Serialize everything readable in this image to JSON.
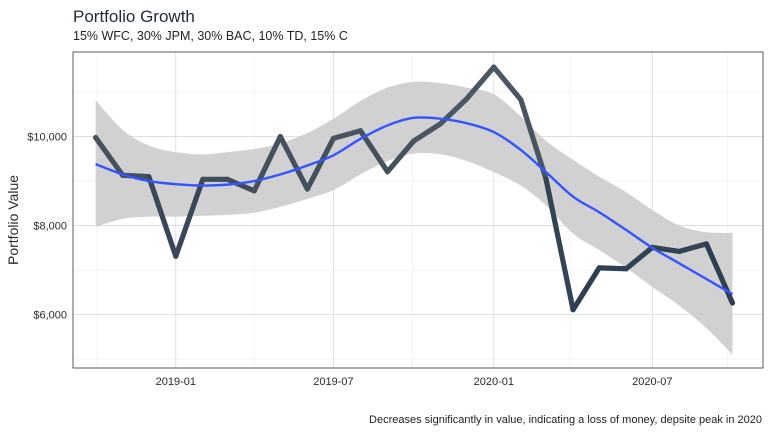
{
  "chart_data": {
    "type": "line",
    "title": "Portfolio Growth",
    "subtitle": "15% WFC, 30% JPM, 30% BAC, 10% TD, 15% C",
    "caption": "Decreases significantly in value, indicating a loss of money, depsite peak in 2020",
    "xlabel": "",
    "ylabel": "Portfolio Value",
    "x_ticks": [
      {
        "date": "2019-01-01",
        "label": "2019-01"
      },
      {
        "date": "2019-07-01",
        "label": "2019-07"
      },
      {
        "date": "2020-01-01",
        "label": "2020-01"
      },
      {
        "date": "2020-07-01",
        "label": "2020-07"
      }
    ],
    "y_ticks": [
      {
        "value": 6000,
        "label": "$6,000"
      },
      {
        "value": 8000,
        "label": "$8,000"
      },
      {
        "value": 10000,
        "label": "$10,000"
      }
    ],
    "xlim": [
      "2018-09-05",
      "2020-11-05"
    ],
    "ylim": [
      4800,
      11900
    ],
    "grid": true,
    "legend": "none",
    "colors": {
      "panel_border": "#333333",
      "grid_major": "#d9d9d9",
      "grid_minor": "#ececec",
      "band": "#cfcfcf",
      "smooth": "#3355ff",
      "line_low": "#2c3e50",
      "line_high": "#4b5563",
      "text": "#2b2b2b"
    },
    "series": [
      {
        "values": [
          {
            "x": "2018-10-01",
            "y": 9980
          },
          {
            "x": "2018-11-01",
            "y": 9130
          },
          {
            "x": "2018-12-01",
            "y": 9100
          },
          {
            "x": "2019-01-01",
            "y": 7310
          },
          {
            "x": "2019-02-01",
            "y": 9040
          },
          {
            "x": "2019-03-01",
            "y": 9040
          },
          {
            "x": "2019-04-01",
            "y": 8780
          },
          {
            "x": "2019-05-01",
            "y": 10000
          },
          {
            "x": "2019-06-01",
            "y": 8820
          },
          {
            "x": "2019-07-01",
            "y": 9960
          },
          {
            "x": "2019-08-01",
            "y": 10130
          },
          {
            "x": "2019-09-01",
            "y": 9210
          },
          {
            "x": "2019-10-01",
            "y": 9900
          },
          {
            "x": "2019-11-01",
            "y": 10290
          },
          {
            "x": "2019-12-01",
            "y": 10850
          },
          {
            "x": "2020-01-01",
            "y": 11560
          },
          {
            "x": "2020-02-01",
            "y": 10830
          },
          {
            "x": "2020-03-01",
            "y": 9040
          },
          {
            "x": "2020-04-01",
            "y": 6110
          },
          {
            "x": "2020-05-01",
            "y": 7050
          },
          {
            "x": "2020-06-01",
            "y": 7030
          },
          {
            "x": "2020-07-01",
            "y": 7510
          },
          {
            "x": "2020-08-01",
            "y": 7420
          },
          {
            "x": "2020-09-01",
            "y": 7590
          },
          {
            "x": "2020-10-01",
            "y": 6260
          }
        ]
      }
    ],
    "smooth": {
      "method": "loess",
      "fit": [
        {
          "x": "2018-10-01",
          "y": 9380
        },
        {
          "x": "2018-11-01",
          "y": 9150
        },
        {
          "x": "2018-12-01",
          "y": 9000
        },
        {
          "x": "2019-01-01",
          "y": 8930
        },
        {
          "x": "2019-02-01",
          "y": 8900
        },
        {
          "x": "2019-03-01",
          "y": 8920
        },
        {
          "x": "2019-04-01",
          "y": 9000
        },
        {
          "x": "2019-05-01",
          "y": 9150
        },
        {
          "x": "2019-06-01",
          "y": 9350
        },
        {
          "x": "2019-07-01",
          "y": 9580
        },
        {
          "x": "2019-08-01",
          "y": 9950
        },
        {
          "x": "2019-09-01",
          "y": 10250
        },
        {
          "x": "2019-10-01",
          "y": 10420
        },
        {
          "x": "2019-11-01",
          "y": 10400
        },
        {
          "x": "2019-12-01",
          "y": 10300
        },
        {
          "x": "2020-01-01",
          "y": 10100
        },
        {
          "x": "2020-02-01",
          "y": 9700
        },
        {
          "x": "2020-03-01",
          "y": 9200
        },
        {
          "x": "2020-04-01",
          "y": 8650
        },
        {
          "x": "2020-05-01",
          "y": 8300
        },
        {
          "x": "2020-06-01",
          "y": 7900
        },
        {
          "x": "2020-07-01",
          "y": 7500
        },
        {
          "x": "2020-08-01",
          "y": 7150
        },
        {
          "x": "2020-09-01",
          "y": 6800
        },
        {
          "x": "2020-10-01",
          "y": 6460
        }
      ],
      "band_upper": [
        {
          "x": "2018-10-01",
          "y": 10820
        },
        {
          "x": "2018-11-01",
          "y": 10150
        },
        {
          "x": "2018-12-01",
          "y": 9800
        },
        {
          "x": "2019-01-01",
          "y": 9650
        },
        {
          "x": "2019-02-01",
          "y": 9600
        },
        {
          "x": "2019-03-01",
          "y": 9650
        },
        {
          "x": "2019-04-01",
          "y": 9720
        },
        {
          "x": "2019-05-01",
          "y": 9850
        },
        {
          "x": "2019-06-01",
          "y": 10080
        },
        {
          "x": "2019-07-01",
          "y": 10400
        },
        {
          "x": "2019-08-01",
          "y": 10800
        },
        {
          "x": "2019-09-01",
          "y": 11100
        },
        {
          "x": "2019-10-01",
          "y": 11230
        },
        {
          "x": "2019-11-01",
          "y": 11200
        },
        {
          "x": "2019-12-01",
          "y": 11100
        },
        {
          "x": "2020-01-01",
          "y": 10950
        },
        {
          "x": "2020-02-01",
          "y": 10450
        },
        {
          "x": "2020-03-01",
          "y": 9900
        },
        {
          "x": "2020-04-01",
          "y": 9480
        },
        {
          "x": "2020-05-01",
          "y": 9100
        },
        {
          "x": "2020-06-01",
          "y": 8750
        },
        {
          "x": "2020-07-01",
          "y": 8350
        },
        {
          "x": "2020-08-01",
          "y": 8000
        },
        {
          "x": "2020-09-01",
          "y": 7850
        },
        {
          "x": "2020-10-01",
          "y": 7840
        }
      ],
      "band_lower": [
        {
          "x": "2018-10-01",
          "y": 7970
        },
        {
          "x": "2018-11-01",
          "y": 8150
        },
        {
          "x": "2018-12-01",
          "y": 8200
        },
        {
          "x": "2019-01-01",
          "y": 8200
        },
        {
          "x": "2019-02-01",
          "y": 8220
        },
        {
          "x": "2019-03-01",
          "y": 8240
        },
        {
          "x": "2019-04-01",
          "y": 8290
        },
        {
          "x": "2019-05-01",
          "y": 8420
        },
        {
          "x": "2019-06-01",
          "y": 8600
        },
        {
          "x": "2019-07-01",
          "y": 8800
        },
        {
          "x": "2019-08-01",
          "y": 9150
        },
        {
          "x": "2019-09-01",
          "y": 9450
        },
        {
          "x": "2019-10-01",
          "y": 9620
        },
        {
          "x": "2019-11-01",
          "y": 9600
        },
        {
          "x": "2019-12-01",
          "y": 9450
        },
        {
          "x": "2020-01-01",
          "y": 9200
        },
        {
          "x": "2020-02-01",
          "y": 8900
        },
        {
          "x": "2020-03-01",
          "y": 8450
        },
        {
          "x": "2020-04-01",
          "y": 7820
        },
        {
          "x": "2020-05-01",
          "y": 7450
        },
        {
          "x": "2020-06-01",
          "y": 7050
        },
        {
          "x": "2020-07-01",
          "y": 6620
        },
        {
          "x": "2020-08-01",
          "y": 6200
        },
        {
          "x": "2020-09-01",
          "y": 5700
        },
        {
          "x": "2020-10-01",
          "y": 5100
        }
      ]
    }
  }
}
